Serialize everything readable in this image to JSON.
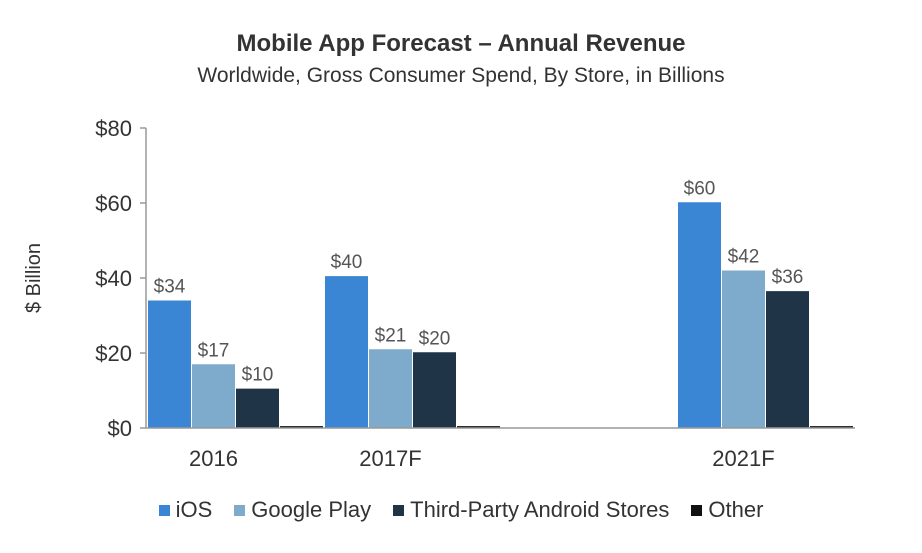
{
  "chart_data": {
    "type": "bar",
    "title": "Mobile App Forecast – Annual Revenue",
    "subtitle": "Worldwide, Gross Consumer Spend, By Store, in Billions",
    "ylabel": "$ Billion",
    "xlabel": "",
    "ylim": [
      0,
      80
    ],
    "yticks": [
      0,
      20,
      40,
      60,
      80
    ],
    "ytick_labels": [
      "$0",
      "$20",
      "$40",
      "$60",
      "$80"
    ],
    "categories": [
      "2016",
      "2017F",
      "2021F"
    ],
    "series": [
      {
        "name": "iOS",
        "color": "#3b86d4",
        "values": [
          34,
          40.5,
          60.2
        ],
        "labels": [
          "$34",
          "$40",
          "$60"
        ]
      },
      {
        "name": "Google Play",
        "color": "#7eaacb",
        "values": [
          17,
          21,
          42
        ],
        "labels": [
          "$17",
          "$21",
          "$42"
        ]
      },
      {
        "name": "Third-Party Android Stores",
        "color": "#1f3447",
        "values": [
          10.5,
          20.2,
          36.5
        ],
        "labels": [
          "$10",
          "$20",
          "$36"
        ]
      },
      {
        "name": "Other",
        "color": "#111111",
        "values": [
          0.5,
          0.5,
          0.5
        ],
        "labels": [
          "",
          "",
          ""
        ]
      }
    ],
    "grid": false,
    "legend_position": "bottom"
  }
}
